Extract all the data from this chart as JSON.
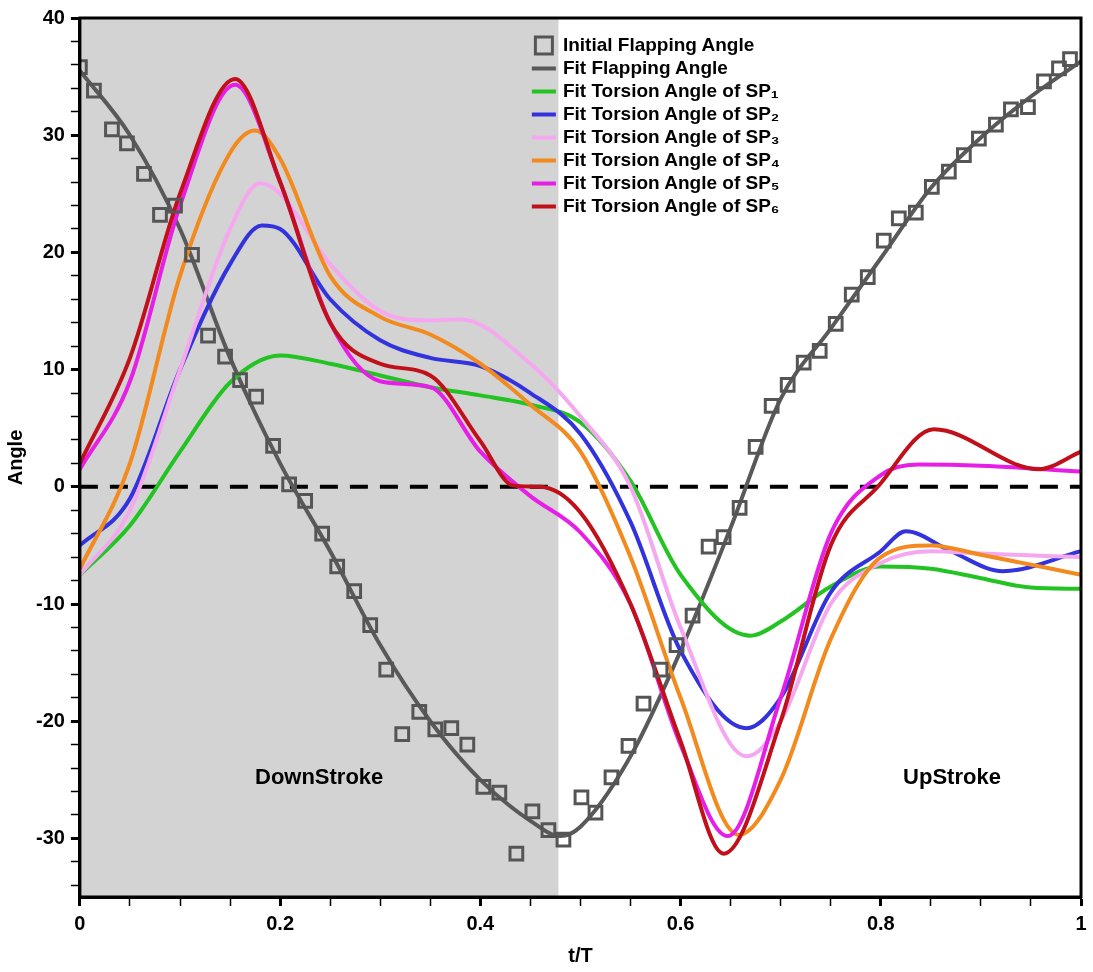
{
  "chart_data": {
    "type": "line",
    "xlabel": "t/T",
    "ylabel": "Angle",
    "xlim": [
      0,
      1
    ],
    "ylim": [
      -35,
      40
    ],
    "xticks": [
      0,
      {
        "value": 0.05,
        "label": null
      },
      {
        "value": 0.1,
        "label": null
      },
      {
        "value": 0.15,
        "label": null
      },
      0.2,
      {
        "value": 0.25,
        "label": null
      },
      {
        "value": 0.3,
        "label": null
      },
      {
        "value": 0.35,
        "label": null
      },
      0.4,
      {
        "value": 0.45,
        "label": null
      },
      {
        "value": 0.5,
        "label": null
      },
      {
        "value": 0.55,
        "label": null
      },
      0.6,
      {
        "value": 0.65,
        "label": null
      },
      {
        "value": 0.7,
        "label": null
      },
      {
        "value": 0.75,
        "label": null
      },
      0.8,
      {
        "value": 0.85,
        "label": null
      },
      {
        "value": 0.9,
        "label": null
      },
      {
        "value": 0.95,
        "label": null
      },
      1
    ],
    "yticks": [
      {
        "value": -34,
        "label": null
      },
      {
        "value": -32,
        "label": null
      },
      -30,
      {
        "value": -28,
        "label": null
      },
      {
        "value": -26,
        "label": null
      },
      {
        "value": -24,
        "label": null
      },
      {
        "value": -22,
        "label": null
      },
      -20,
      {
        "value": -18,
        "label": null
      },
      {
        "value": -16,
        "label": null
      },
      {
        "value": -14,
        "label": null
      },
      {
        "value": -12,
        "label": null
      },
      -10,
      {
        "value": -8,
        "label": null
      },
      {
        "value": -6,
        "label": null
      },
      {
        "value": -4,
        "label": null
      },
      {
        "value": -2,
        "label": null
      },
      0,
      {
        "value": 2,
        "label": null
      },
      {
        "value": 4,
        "label": null
      },
      {
        "value": 6,
        "label": null
      },
      {
        "value": 8,
        "label": null
      },
      10,
      {
        "value": 12,
        "label": null
      },
      {
        "value": 14,
        "label": null
      },
      {
        "value": 16,
        "label": null
      },
      {
        "value": 18,
        "label": null
      },
      20,
      {
        "value": 22,
        "label": null
      },
      {
        "value": 24,
        "label": null
      },
      {
        "value": 26,
        "label": null
      },
      {
        "value": 28,
        "label": null
      },
      30,
      {
        "value": 32,
        "label": null
      },
      {
        "value": 34,
        "label": null
      },
      {
        "value": 36,
        "label": null
      },
      {
        "value": 38,
        "label": null
      },
      40
    ],
    "grid": false,
    "legend": "top right",
    "bands": [
      {
        "axis": "x",
        "from": 0,
        "to": 0.478,
        "label": "DownStroke",
        "color": "#d3d3d3"
      }
    ],
    "ref_lines": [
      {
        "axis": "y",
        "value": 0,
        "color": "#000000",
        "line_style": "dashed"
      }
    ],
    "annotations": [
      "UpStroke"
    ],
    "series": [
      {
        "name": "Initial Flapping Angle",
        "type": "scatter",
        "marker": "square",
        "color": "#555555",
        "x": [
          0,
          0.014,
          0.032,
          0.047,
          0.064,
          0.08,
          0.095,
          0.112,
          0.128,
          0.145,
          0.16,
          0.176,
          0.193,
          0.209,
          0.225,
          0.242,
          0.257,
          0.274,
          0.29,
          0.306,
          0.322,
          0.339,
          0.355,
          0.371,
          0.387,
          0.403,
          0.419,
          0.436,
          0.452,
          0.468,
          0.483,
          0.501,
          0.515,
          0.531,
          0.548,
          0.563,
          0.58,
          0.596,
          0.612,
          0.628,
          0.643,
          0.659,
          0.675,
          0.691,
          0.707,
          0.723,
          0.739,
          0.755,
          0.771,
          0.787,
          0.803,
          0.818,
          0.835,
          0.851,
          0.868,
          0.883,
          0.898,
          0.915,
          0.93,
          0.947,
          0.963,
          0.978,
          0.989
        ],
        "values": [
          35.8,
          33.8,
          30.5,
          29.3,
          26.7,
          23.2,
          24.0,
          19.8,
          12.9,
          11.1,
          9.1,
          7.7,
          3.5,
          0.2,
          -1.2,
          -4.0,
          -6.8,
          -8.9,
          -11.8,
          -15.6,
          -21.1,
          -19.2,
          -20.7,
          -20.6,
          -22.0,
          -25.6,
          -26.1,
          -31.3,
          -27.7,
          -29.3,
          -30.1,
          -26.5,
          -27.8,
          -24.8,
          -22.1,
          -18.5,
          -15.6,
          -13.5,
          -11.0,
          -5.1,
          -4.3,
          -1.8,
          3.4,
          6.9,
          8.7,
          10.6,
          11.6,
          13.9,
          16.4,
          17.9,
          21.0,
          22.9,
          23.4,
          25.6,
          26.9,
          28.3,
          29.7,
          30.9,
          32.2,
          32.4,
          34.6,
          35.7,
          36.5
        ]
      },
      {
        "name": "Fit Flapping Angle",
        "marker": "none",
        "color": "#595959",
        "x": [
          0,
          0.05,
          0.1,
          0.15,
          0.2,
          0.25,
          0.3,
          0.35,
          0.4,
          0.45,
          0.48,
          0.5,
          0.55,
          0.6,
          0.65,
          0.7,
          0.75,
          0.8,
          0.85,
          0.9,
          0.95,
          1
        ],
        "values": [
          35.5,
          30.0,
          22.0,
          11.0,
          2.0,
          -5.5,
          -13.5,
          -20.0,
          -25.0,
          -28.5,
          -29.8,
          -29.0,
          -23.0,
          -14.0,
          -3.5,
          7.5,
          13.5,
          19.5,
          25.5,
          29.8,
          33.3,
          36.3
        ]
      },
      {
        "name": "Fit Torsion Angle of SP₁",
        "marker": "none",
        "color": "#22c322",
        "x": [
          0,
          0.05,
          0.1,
          0.15,
          0.2,
          0.25,
          0.3,
          0.35,
          0.4,
          0.45,
          0.5,
          0.55,
          0.6,
          0.67,
          0.7,
          0.75,
          0.8,
          0.85,
          0.9,
          0.95,
          1
        ],
        "values": [
          -7.5,
          -3.3,
          3.0,
          8.9,
          11.2,
          10.5,
          9.5,
          8.5,
          7.8,
          7.0,
          5.5,
          0.5,
          -7.5,
          -12.7,
          -11.5,
          -8.5,
          -6.8,
          -7.0,
          -7.8,
          -8.6,
          -8.7
        ]
      },
      {
        "name": "Fit Torsion Angle of SP₂",
        "marker": "none",
        "color": "#3333dd",
        "x": [
          0,
          0.05,
          0.1,
          0.15,
          0.182,
          0.2,
          0.25,
          0.3,
          0.35,
          0.4,
          0.45,
          0.5,
          0.55,
          0.6,
          0.666,
          0.7,
          0.75,
          0.8,
          0.825,
          0.87,
          0.922,
          1
        ],
        "values": [
          -5.0,
          -1.0,
          10.0,
          19.0,
          22.3,
          22.0,
          16.0,
          12.5,
          11.0,
          10.3,
          8.0,
          4.5,
          -3.0,
          -14.0,
          -20.6,
          -18.0,
          -9.0,
          -5.5,
          -3.8,
          -5.5,
          -7.2,
          -5.5
        ]
      },
      {
        "name": "Fit Torsion Angle of SP₃",
        "marker": "none",
        "color": "#f5a8f0",
        "x": [
          0,
          0.05,
          0.1,
          0.15,
          0.18,
          0.2,
          0.25,
          0.3,
          0.35,
          0.38,
          0.45,
          0.5,
          0.55,
          0.6,
          0.666,
          0.7,
          0.75,
          0.8,
          0.85,
          0.9,
          1
        ],
        "values": [
          -7.5,
          -2.0,
          10.0,
          22.0,
          25.9,
          25.0,
          19.0,
          15.0,
          14.2,
          14.3,
          10.5,
          6.0,
          0.0,
          -12.0,
          -23.0,
          -20.0,
          -10.0,
          -6.5,
          -5.5,
          -5.7,
          -6.0
        ]
      },
      {
        "name": "Fit Torsion Angle of SP₄",
        "marker": "none",
        "color": "#f28a1e",
        "x": [
          0,
          0.05,
          0.1,
          0.15,
          0.175,
          0.2,
          0.25,
          0.3,
          0.35,
          0.4,
          0.45,
          0.5,
          0.55,
          0.6,
          0.658,
          0.7,
          0.75,
          0.8,
          0.85,
          0.9,
          1
        ],
        "values": [
          -7.0,
          2.0,
          18.0,
          28.5,
          30.4,
          28.0,
          18.0,
          14.5,
          13.0,
          10.5,
          7.0,
          3.0,
          -6.0,
          -18.0,
          -29.7,
          -25.0,
          -13.0,
          -6.0,
          -5.0,
          -5.8,
          -7.5
        ]
      },
      {
        "name": "Fit Torsion Angle of SP₅",
        "marker": "none",
        "color": "#e61ee6",
        "x": [
          0,
          0.05,
          0.1,
          0.155,
          0.2,
          0.25,
          0.3,
          0.35,
          0.4,
          0.45,
          0.5,
          0.55,
          0.6,
          0.647,
          0.7,
          0.75,
          0.8,
          0.837,
          0.9,
          1
        ],
        "values": [
          1.5,
          9.0,
          24.0,
          34.3,
          26.0,
          14.0,
          9.0,
          8.5,
          3.0,
          -0.8,
          -3.9,
          -10.0,
          -22.0,
          -29.8,
          -18.0,
          -4.0,
          1.0,
          1.9,
          1.8,
          1.3
        ]
      },
      {
        "name": "Fit Torsion Angle of SP₆",
        "marker": "none",
        "color": "#c0101a",
        "x": [
          0,
          0.05,
          0.1,
          0.155,
          0.2,
          0.25,
          0.3,
          0.35,
          0.4,
          0.433,
          0.46,
          0.5,
          0.55,
          0.6,
          0.643,
          0.7,
          0.75,
          0.797,
          0.853,
          0.958,
          1
        ],
        "values": [
          2.0,
          11.0,
          25.0,
          34.8,
          26.0,
          14.0,
          10.5,
          9.5,
          3.9,
          0.1,
          0.0,
          -2.2,
          -10.0,
          -21.7,
          -31.3,
          -20.0,
          -5.0,
          0.0,
          4.9,
          1.5,
          3.0
        ]
      }
    ]
  }
}
